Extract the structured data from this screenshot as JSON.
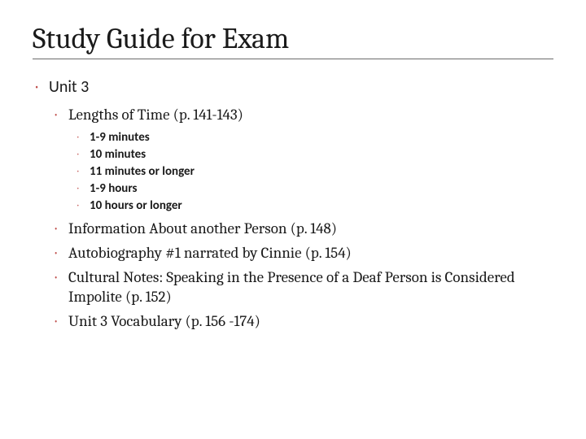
{
  "title": "Study Guide for Exam",
  "bullet_glyph_l1": "•",
  "bullet_glyph_l2": "•",
  "bullet_glyph_l3": "•",
  "accent_color": "#c0504d",
  "lvl1": {
    "label": "Unit 3"
  },
  "lvl2_first": {
    "label": "Lengths of Time (p. 141-143)"
  },
  "lvl3_items": [
    "1-9 minutes",
    "10 minutes",
    "11 minutes or longer",
    "1-9 hours",
    "10 hours or longer"
  ],
  "lvl2_rest": [
    "Information About another Person (p. 148)",
    "Autobiography #1 narrated by Cinnie (p. 154)",
    "Cultural Notes: Speaking in the Presence of a Deaf Person is Considered Impolite (p. 152)",
    "Unit 3 Vocabulary (p. 156 -174)"
  ],
  "fonts": {
    "title": "Cambria",
    "body_serif": "Cambria",
    "body_sans": "Calibri"
  },
  "font_sizes_pt": {
    "title": 27,
    "lvl1": 15,
    "lvl2": 14,
    "lvl3": 11
  },
  "colors": {
    "text": "#1a1a1a",
    "rule": "#6b6b6b",
    "background": "#ffffff"
  }
}
